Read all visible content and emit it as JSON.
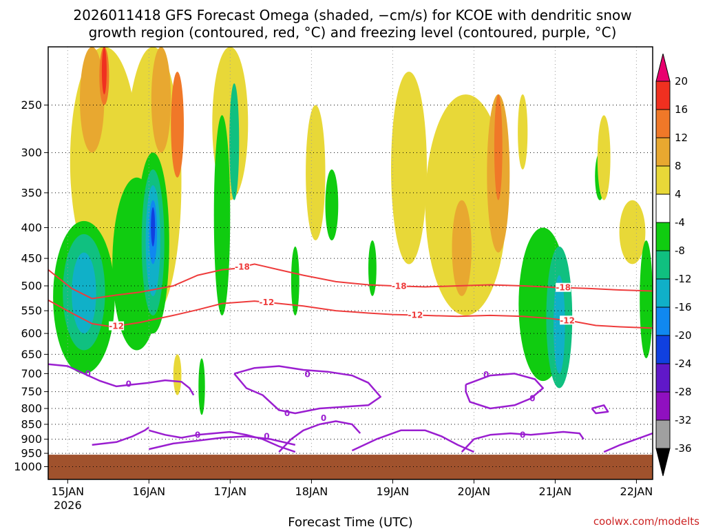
{
  "chart_data": {
    "type": "heatmap",
    "title_line1": "2026011418 GFS Forecast Omega (shaded, −cm/s) for KCOE with dendritic snow",
    "title_line2": "growth region (contoured, red, °C) and freezing level (contoured, purple, °C)",
    "xlabel": "Forecast Time (UTC)",
    "credit": "coolwx.com/modelts",
    "x_ticks": [
      "15JAN",
      "16JAN",
      "17JAN",
      "18JAN",
      "19JAN",
      "20JAN",
      "21JAN",
      "22JAN"
    ],
    "x_year": "2026",
    "xlim_days": [
      14.76,
      22.2
    ],
    "y_ticks": [
      250,
      300,
      350,
      400,
      450,
      500,
      550,
      600,
      650,
      700,
      750,
      800,
      850,
      900,
      950,
      1000
    ],
    "y_axis": "pressure (hPa), log scale, top ~200, bottom 1050",
    "ylim_hpa": [
      200,
      1050
    ],
    "colorbar_levels": [
      20,
      16,
      12,
      8,
      4,
      -4,
      -8,
      -12,
      -16,
      -20,
      -24,
      -28,
      -32,
      -36
    ],
    "colorbar_colors": {
      "above_20": "#e8006e",
      "16_20": "#f03020",
      "12_16": "#f07828",
      "8_12": "#e8a830",
      "4_8": "#e8d838",
      "-4_4": "#ffffff",
      "-8_-4": "#10cc10",
      "-12_-8": "#10c080",
      "-16_-12": "#10b0c8",
      "-20_-16": "#1088f0",
      "-24_-20": "#1040e0",
      "-28_-24": "#6018c8",
      "-32_-28": "#9010c0",
      "-36_-32": "#a0a0a0",
      "below_-36": "#000000"
    },
    "contour_colors": {
      "dgz": "#ee3b3b",
      "freezing": "#9a1ed0",
      "ground": "#a0522d"
    },
    "dgz_minus18_hpa": [
      [
        14.76,
        470
      ],
      [
        15.05,
        505
      ],
      [
        15.3,
        525
      ],
      [
        15.6,
        518
      ],
      [
        15.9,
        512
      ],
      [
        16.3,
        500
      ],
      [
        16.6,
        480
      ],
      [
        16.9,
        470
      ],
      [
        17.05,
        468
      ],
      [
        17.3,
        460
      ],
      [
        17.6,
        470
      ],
      [
        17.9,
        480
      ],
      [
        18.3,
        492
      ],
      [
        18.7,
        498
      ],
      [
        19.0,
        500
      ],
      [
        19.4,
        502
      ],
      [
        19.8,
        500
      ],
      [
        20.2,
        498
      ],
      [
        20.6,
        500
      ],
      [
        21.0,
        503
      ],
      [
        21.4,
        505
      ],
      [
        21.8,
        508
      ],
      [
        22.2,
        510
      ]
    ],
    "dgz_minus18_labels": [
      [
        17.15,
        "-18"
      ],
      [
        19.08,
        "-18"
      ],
      [
        21.1,
        "-18"
      ]
    ],
    "dgz_minus12_hpa": [
      [
        14.76,
        528
      ],
      [
        15.05,
        555
      ],
      [
        15.3,
        578
      ],
      [
        15.55,
        585
      ],
      [
        15.9,
        575
      ],
      [
        16.3,
        560
      ],
      [
        16.6,
        548
      ],
      [
        16.9,
        535
      ],
      [
        17.3,
        530
      ],
      [
        17.6,
        535
      ],
      [
        17.9,
        540
      ],
      [
        18.3,
        550
      ],
      [
        18.7,
        555
      ],
      [
        19.0,
        558
      ],
      [
        19.4,
        560
      ],
      [
        19.8,
        562
      ],
      [
        20.2,
        560
      ],
      [
        20.6,
        562
      ],
      [
        20.9,
        566
      ],
      [
        21.2,
        572
      ],
      [
        21.5,
        582
      ],
      [
        21.8,
        585
      ],
      [
        22.2,
        588
      ]
    ],
    "dgz_minus12_labels": [
      [
        15.6,
        "-12"
      ],
      [
        17.45,
        "-12"
      ],
      [
        19.28,
        "-12"
      ],
      [
        21.15,
        "-12"
      ]
    ],
    "freezing_label_values": [
      "0",
      "0",
      "0",
      "0",
      "0",
      "0",
      "0",
      "0",
      "0",
      "0"
    ],
    "freezing_contours_hpa": [
      [
        [
          14.76,
          675
        ],
        [
          15.0,
          680
        ],
        [
          15.2,
          700
        ],
        [
          15.4,
          720
        ],
        [
          15.6,
          735
        ],
        [
          15.8,
          730
        ],
        [
          16.0,
          725
        ],
        [
          16.2,
          718
        ],
        [
          16.4,
          722
        ],
        [
          16.5,
          740
        ],
        [
          16.55,
          760
        ]
      ],
      [
        [
          15.3,
          920
        ],
        [
          15.6,
          910
        ],
        [
          15.8,
          890
        ],
        [
          15.95,
          870
        ],
        [
          16.0,
          860
        ]
      ],
      [
        [
          16.0,
          870
        ],
        [
          16.2,
          885
        ],
        [
          16.4,
          895
        ],
        [
          16.6,
          885
        ],
        [
          16.8,
          880
        ],
        [
          17.0,
          875
        ],
        [
          17.2,
          885
        ],
        [
          17.4,
          900
        ],
        [
          17.6,
          925
        ],
        [
          17.8,
          945
        ]
      ],
      [
        [
          16.0,
          935
        ],
        [
          16.3,
          915
        ],
        [
          16.6,
          905
        ],
        [
          16.9,
          895
        ],
        [
          17.2,
          890
        ],
        [
          17.5,
          900
        ],
        [
          17.8,
          920
        ]
      ],
      [
        [
          17.05,
          700
        ],
        [
          17.3,
          685
        ],
        [
          17.6,
          680
        ],
        [
          17.9,
          690
        ],
        [
          18.2,
          695
        ],
        [
          18.5,
          705
        ],
        [
          18.7,
          725
        ],
        [
          18.85,
          765
        ],
        [
          18.7,
          790
        ],
        [
          18.4,
          795
        ],
        [
          18.1,
          800
        ],
        [
          17.8,
          815
        ],
        [
          17.6,
          805
        ],
        [
          17.4,
          760
        ],
        [
          17.2,
          740
        ],
        [
          17.05,
          700
        ]
      ],
      [
        [
          17.6,
          945
        ],
        [
          17.75,
          900
        ],
        [
          17.9,
          870
        ],
        [
          18.1,
          850
        ],
        [
          18.3,
          840
        ],
        [
          18.5,
          850
        ],
        [
          18.6,
          880
        ]
      ],
      [
        [
          18.5,
          940
        ],
        [
          18.8,
          900
        ],
        [
          19.1,
          870
        ],
        [
          19.4,
          870
        ],
        [
          19.6,
          890
        ],
        [
          19.8,
          920
        ],
        [
          20.0,
          945
        ]
      ],
      [
        [
          19.9,
          730
        ],
        [
          20.2,
          705
        ],
        [
          20.5,
          700
        ],
        [
          20.75,
          715
        ],
        [
          20.85,
          740
        ],
        [
          20.7,
          770
        ],
        [
          20.5,
          790
        ],
        [
          20.2,
          800
        ],
        [
          19.95,
          780
        ],
        [
          19.9,
          750
        ],
        [
          19.9,
          730
        ]
      ],
      [
        [
          19.85,
          945
        ],
        [
          20.0,
          900
        ],
        [
          20.2,
          885
        ],
        [
          20.45,
          880
        ],
        [
          20.7,
          885
        ],
        [
          20.9,
          880
        ],
        [
          21.1,
          875
        ],
        [
          21.3,
          880
        ],
        [
          21.35,
          900
        ]
      ],
      [
        [
          21.45,
          800
        ],
        [
          21.6,
          790
        ],
        [
          21.65,
          810
        ],
        [
          21.5,
          815
        ],
        [
          21.45,
          800
        ]
      ],
      [
        [
          21.6,
          945
        ],
        [
          21.8,
          920
        ],
        [
          22.0,
          900
        ],
        [
          22.2,
          880
        ]
      ]
    ],
    "freezing_labels": [
      [
        15.75,
        728
      ],
      [
        17.45,
        890
      ],
      [
        17.95,
        702
      ],
      [
        17.7,
        815
      ],
      [
        18.15,
        830
      ],
      [
        20.15,
        703
      ],
      [
        20.72,
        770
      ],
      [
        20.6,
        885
      ],
      [
        15.25,
        700
      ],
      [
        16.6,
        885
      ]
    ],
    "ground_top_hpa": 955
  }
}
